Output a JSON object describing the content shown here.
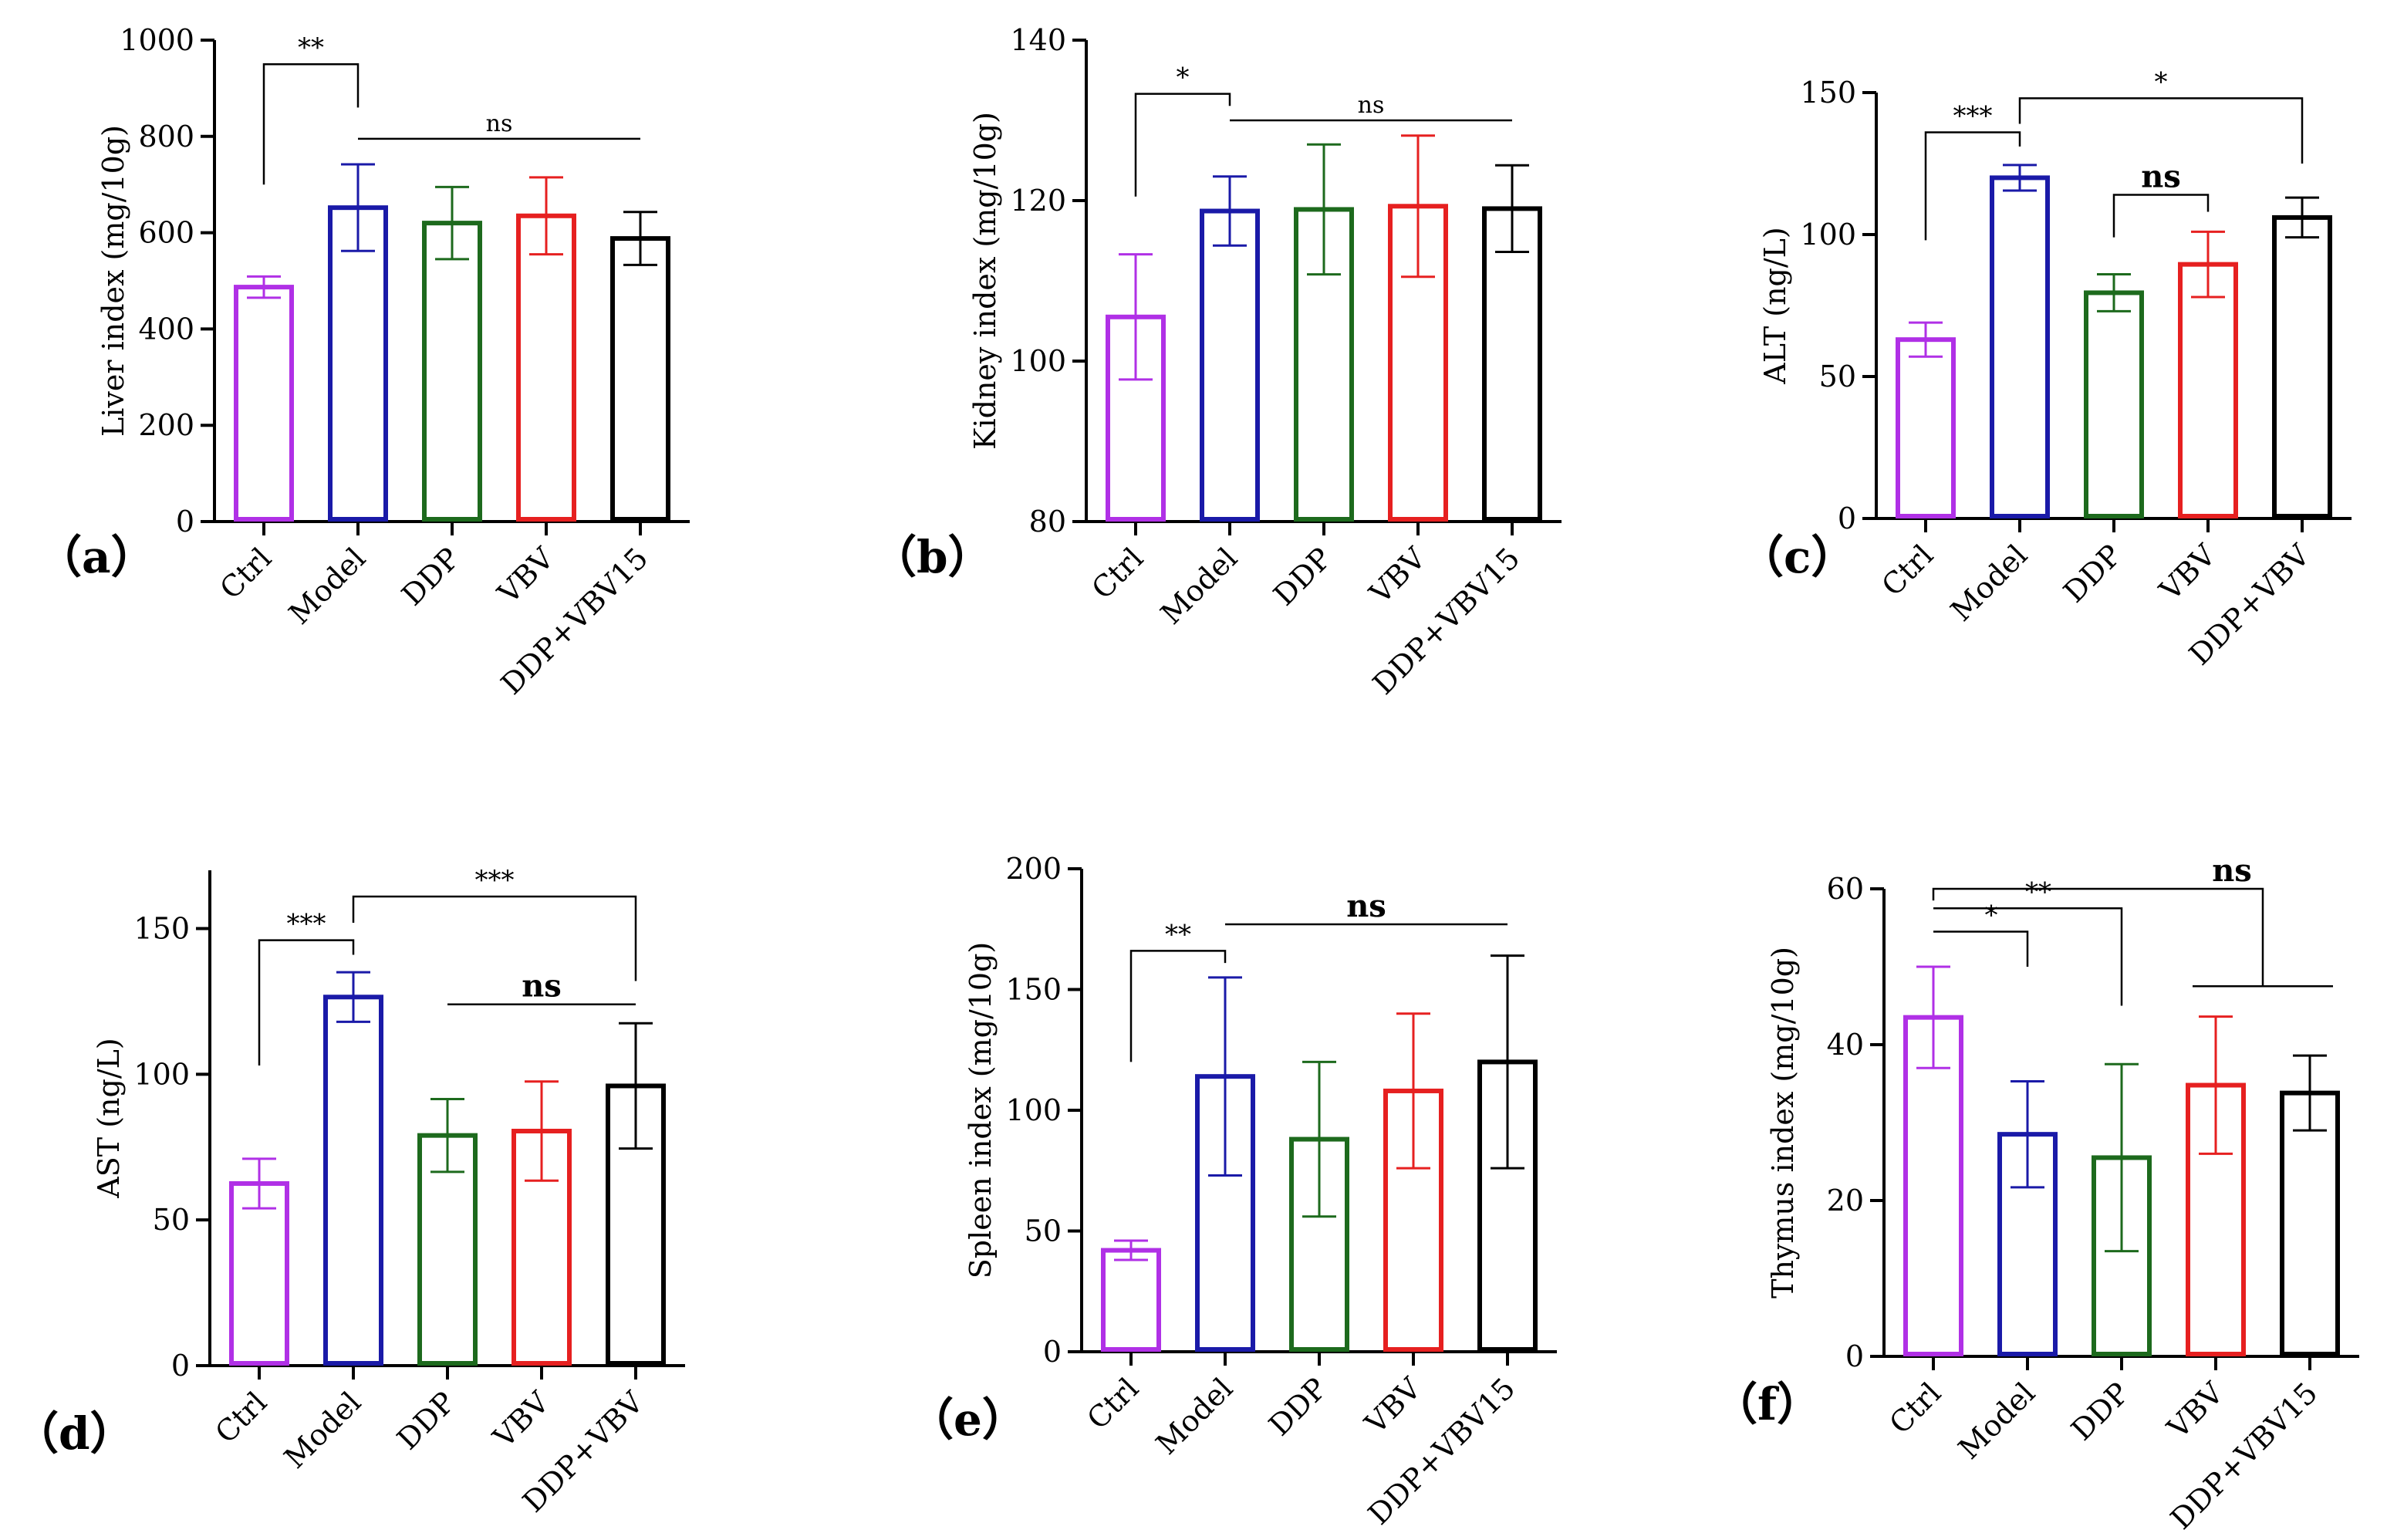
{
  "figure": {
    "colors": {
      "Ctrl": "#b030e6",
      "Model": "#1a1aa8",
      "DDP": "#1d6a1d",
      "VBV": "#e62020",
      "combo": "#000000"
    }
  },
  "chart_data": [
    {
      "id": "a",
      "type": "bar",
      "panel_label": "（a）",
      "ylabel": "Liver index (mg/10g)",
      "categories": [
        "Ctrl",
        "Model",
        "DDP",
        "VBV",
        "DDP+VBV15"
      ],
      "values": [
        487,
        652,
        620,
        635,
        588
      ],
      "errors": [
        22,
        90,
        75,
        80,
        55
      ],
      "ylim": [
        0,
        1000
      ],
      "yticks": [
        0,
        200,
        400,
        600,
        800,
        1000
      ],
      "annotations": [
        {
          "text": "**",
          "style": "normal",
          "type": "bracket",
          "from": 0,
          "to": 1,
          "level": 950,
          "drop0": 700,
          "drop1": 860
        },
        {
          "text": "ns",
          "style": "ns",
          "type": "line",
          "from": 1,
          "to": 4,
          "level": 795
        }
      ]
    },
    {
      "id": "b",
      "type": "bar",
      "panel_label": "（b）",
      "ylabel": "Kidney index (mg/10g)",
      "categories": [
        "Ctrl",
        "Model",
        "DDP",
        "VBV",
        "DDP+VBV15"
      ],
      "values": [
        105.5,
        118.7,
        118.9,
        119.3,
        119.0
      ],
      "errors": [
        7.8,
        4.3,
        8.1,
        8.8,
        5.4
      ],
      "ylim": [
        80,
        140
      ],
      "yticks": [
        80,
        100,
        120,
        140
      ],
      "annotations": [
        {
          "text": "*",
          "style": "normal",
          "type": "bracket",
          "from": 0,
          "to": 1,
          "level": 133.3,
          "drop0": 120.5,
          "drop1": 131.8
        },
        {
          "text": "ns",
          "style": "ns",
          "type": "line",
          "from": 1,
          "to": 4,
          "level": 130
        }
      ]
    },
    {
      "id": "c",
      "type": "bar",
      "panel_label": "（c）",
      "ylabel": "ALT (ng/L)",
      "categories": [
        "Ctrl",
        "Model",
        "DDP",
        "VBV",
        "DDP+VBV"
      ],
      "values": [
        63,
        120,
        79.5,
        89.5,
        106
      ],
      "errors": [
        6,
        4.5,
        6.5,
        11.5,
        7
      ],
      "ylim": [
        0,
        150
      ],
      "yticks": [
        0,
        50,
        100,
        150
      ],
      "annotations": [
        {
          "text": "***",
          "style": "normal",
          "type": "bracket",
          "from": 0,
          "to": 1,
          "level": 136,
          "drop0": 98,
          "drop1": 131
        },
        {
          "text": "*",
          "style": "normal",
          "type": "bracket",
          "from": 1,
          "to": 4,
          "level": 148,
          "drop0": 139,
          "drop1": 125
        },
        {
          "text": "ns",
          "style": "bold",
          "type": "bracket",
          "from": 2,
          "to": 3,
          "level": 114,
          "drop0": 99,
          "drop1": 108
        }
      ]
    },
    {
      "id": "d",
      "type": "bar",
      "panel_label": "（d）",
      "ylabel": "AST (ng/L)",
      "categories": [
        "Ctrl",
        "Model",
        "DDP",
        "VBV",
        "DDP+VBV"
      ],
      "values": [
        62.5,
        126.5,
        79,
        80.5,
        96
      ],
      "errors": [
        8.5,
        8.5,
        12.5,
        17,
        21.5
      ],
      "ylim": [
        0,
        170
      ],
      "yticks": [
        0,
        50,
        100,
        150
      ],
      "annotations": [
        {
          "text": "***",
          "style": "normal",
          "type": "bracket",
          "from": 0,
          "to": 1,
          "level": 146,
          "drop0": 103,
          "drop1": 141
        },
        {
          "text": "***",
          "style": "normal",
          "type": "bracket",
          "from": 1,
          "to": 4,
          "level": 161,
          "drop0": 152,
          "drop1": 132
        },
        {
          "text": "ns",
          "style": "bold",
          "type": "line",
          "from": 2,
          "to": 4,
          "level": 124
        }
      ]
    },
    {
      "id": "e",
      "type": "bar",
      "panel_label": "（e）",
      "ylabel": "Spleen index (mg/10g)",
      "categories": [
        "Ctrl",
        "Model",
        "DDP",
        "VBV",
        "DDP+VBV15"
      ],
      "values": [
        42,
        114,
        88,
        108,
        120
      ],
      "errors": [
        4,
        41,
        32,
        32,
        44
      ],
      "ylim": [
        0,
        200
      ],
      "yticks": [
        0,
        50,
        100,
        150,
        200
      ],
      "annotations": [
        {
          "text": "**",
          "style": "normal",
          "type": "bracket",
          "from": 0,
          "to": 1,
          "level": 166,
          "drop0": 120,
          "drop1": 161
        },
        {
          "text": "ns",
          "style": "bold",
          "type": "line",
          "from": 1,
          "to": 4,
          "level": 177
        }
      ]
    },
    {
      "id": "f",
      "type": "bar",
      "panel_label": "（f）",
      "ylabel": "Thymus index (mg/10g)",
      "categories": [
        "Ctrl",
        "Model",
        "DDP",
        "VBV",
        "DDP+VBV15"
      ],
      "values": [
        43.5,
        28.5,
        25.5,
        34.8,
        33.8
      ],
      "errors": [
        6.5,
        6.8,
        12,
        8.8,
        4.8
      ],
      "ylim": [
        0,
        60
      ],
      "yticks": [
        0,
        20,
        40,
        60
      ],
      "annotations": [
        {
          "text": "*",
          "style": "normal",
          "type": "step",
          "from": 0,
          "to": 1,
          "level": 54.5,
          "drop1": 50
        },
        {
          "text": "**",
          "style": "normal",
          "type": "step",
          "from": 0,
          "to": 2,
          "level": 57.5,
          "drop1": 45
        },
        {
          "text": "ns",
          "style": "bold",
          "type": "group",
          "from": 0,
          "to": 4,
          "level": 60,
          "groupFrom": 3,
          "groupTo": 4,
          "groupLevel": 47.5
        }
      ]
    }
  ]
}
